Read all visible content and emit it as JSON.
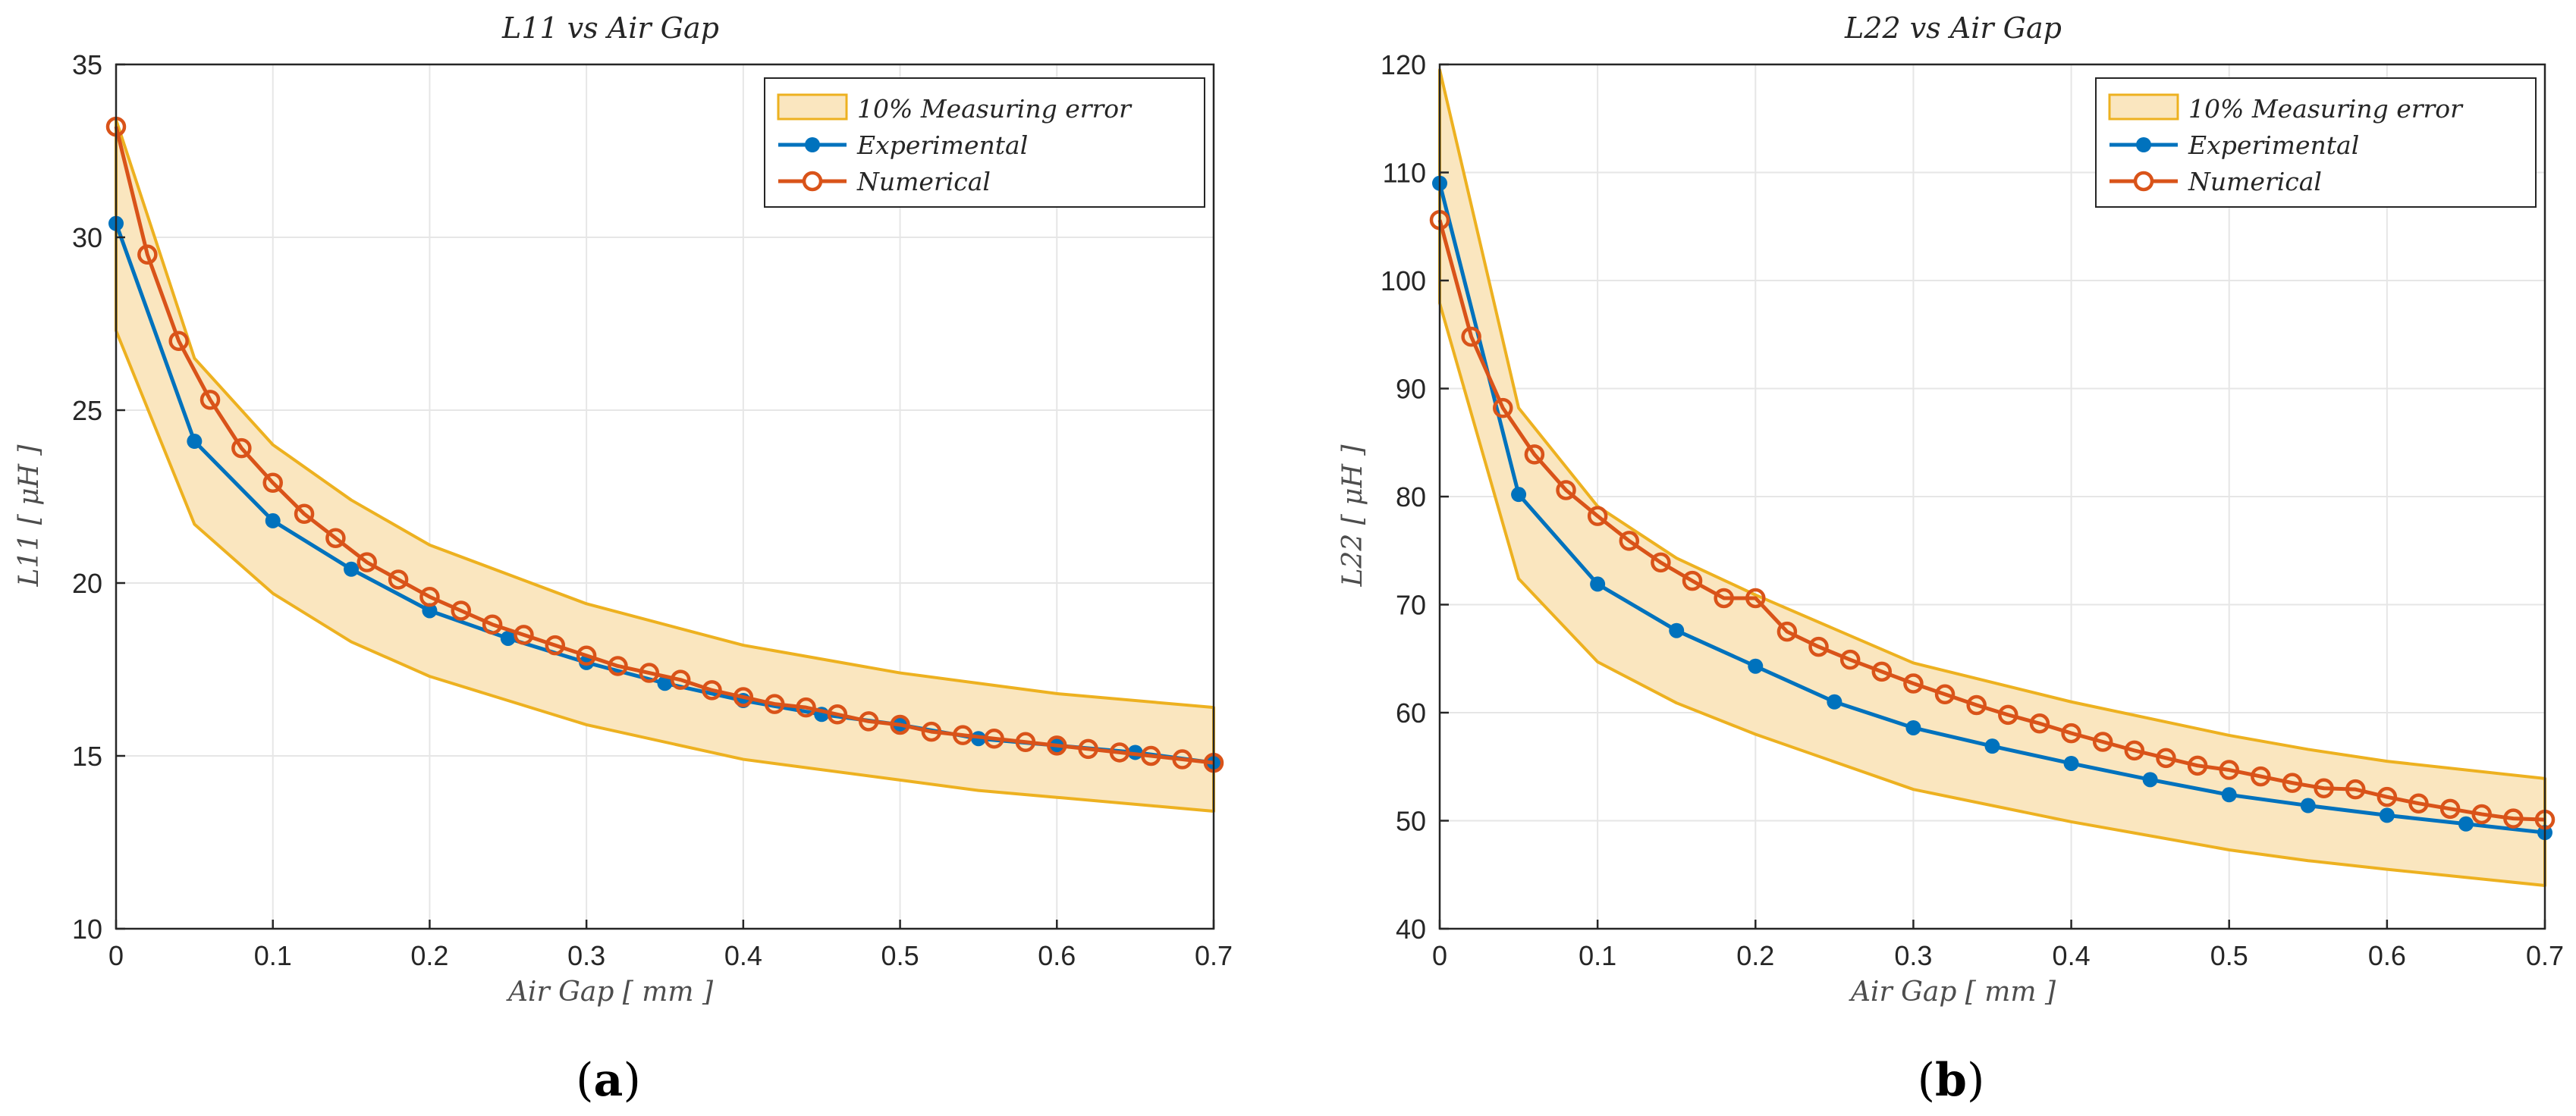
{
  "colors": {
    "band_fill": "#fae6bf",
    "band_edge": "#edb120",
    "experimental": "#0072bd",
    "numerical": "#d95319",
    "grid": "#e6e6e6",
    "axis": "#262626"
  },
  "chart_data": [
    {
      "type": "line",
      "panel": "a",
      "title": "L11 vs Air Gap",
      "xlabel": "Air Gap [ mm ]",
      "ylabel": "L11 [ μH ]",
      "xlim": [
        0,
        0.7
      ],
      "ylim": [
        10,
        35
      ],
      "xticks": [
        0,
        0.1,
        0.2,
        0.3,
        0.4,
        0.5,
        0.6,
        0.7
      ],
      "yticks": [
        10,
        15,
        20,
        25,
        30,
        35
      ],
      "grid": true,
      "legend_position": "top-right",
      "legend": [
        "10% Measuring error",
        "Experimental",
        "Numerical"
      ],
      "band": {
        "name": "10% Measuring error",
        "x": [
          0,
          0.05,
          0.1,
          0.15,
          0.2,
          0.3,
          0.4,
          0.5,
          0.55,
          0.6,
          0.7
        ],
        "upper": [
          33.4,
          26.5,
          24.0,
          22.4,
          21.1,
          19.4,
          18.2,
          17.4,
          17.1,
          16.8,
          16.4
        ],
        "lower": [
          27.3,
          21.7,
          19.7,
          18.3,
          17.3,
          15.9,
          14.9,
          14.3,
          14.0,
          13.8,
          13.4
        ]
      },
      "series": [
        {
          "name": "Experimental",
          "marker": "asterisk",
          "x": [
            0,
            0.05,
            0.1,
            0.15,
            0.2,
            0.25,
            0.3,
            0.35,
            0.4,
            0.45,
            0.5,
            0.55,
            0.6,
            0.65,
            0.7
          ],
          "values": [
            30.4,
            24.1,
            21.8,
            20.4,
            19.2,
            18.4,
            17.7,
            17.1,
            16.6,
            16.2,
            15.9,
            15.5,
            15.3,
            15.1,
            14.8
          ]
        },
        {
          "name": "Numerical",
          "marker": "circle",
          "x": [
            0,
            0.02,
            0.04,
            0.06,
            0.08,
            0.1,
            0.12,
            0.14,
            0.16,
            0.18,
            0.2,
            0.22,
            0.24,
            0.26,
            0.28,
            0.3,
            0.32,
            0.34,
            0.36,
            0.38,
            0.4,
            0.42,
            0.44,
            0.46,
            0.48,
            0.5,
            0.52,
            0.54,
            0.56,
            0.58,
            0.6,
            0.62,
            0.64,
            0.66,
            0.68,
            0.7
          ],
          "values": [
            33.2,
            29.5,
            27.0,
            25.3,
            23.9,
            22.9,
            22.0,
            21.3,
            20.6,
            20.1,
            19.6,
            19.2,
            18.8,
            18.5,
            18.2,
            17.9,
            17.6,
            17.4,
            17.2,
            16.9,
            16.7,
            16.5,
            16.4,
            16.2,
            16.0,
            15.9,
            15.7,
            15.6,
            15.5,
            15.4,
            15.3,
            15.2,
            15.1,
            15.0,
            14.9,
            14.8
          ]
        }
      ]
    },
    {
      "type": "line",
      "panel": "b",
      "title": "L22 vs Air Gap",
      "xlabel": "Air Gap [ mm ]",
      "ylabel": "L22 [ μH ]",
      "xlim": [
        0,
        0.7
      ],
      "ylim": [
        40,
        120
      ],
      "xticks": [
        0,
        0.1,
        0.2,
        0.3,
        0.4,
        0.5,
        0.6,
        0.7
      ],
      "yticks": [
        40,
        50,
        60,
        70,
        80,
        90,
        100,
        110,
        120
      ],
      "grid": true,
      "legend_position": "top-right",
      "legend": [
        "10% Measuring error",
        "Experimental",
        "Numerical"
      ],
      "band": {
        "name": "10% Measuring error",
        "x": [
          0,
          0.05,
          0.1,
          0.15,
          0.2,
          0.3,
          0.4,
          0.5,
          0.55,
          0.6,
          0.7
        ],
        "upper": [
          119.5,
          88.2,
          79.1,
          74.3,
          70.9,
          64.6,
          61.0,
          57.9,
          56.6,
          55.5,
          53.9
        ],
        "lower": [
          97.9,
          72.4,
          64.7,
          60.9,
          58.0,
          52.9,
          49.9,
          47.3,
          46.3,
          45.5,
          44.0
        ]
      },
      "series": [
        {
          "name": "Experimental",
          "marker": "asterisk",
          "x": [
            0,
            0.05,
            0.1,
            0.15,
            0.2,
            0.25,
            0.3,
            0.35,
            0.4,
            0.45,
            0.5,
            0.55,
            0.6,
            0.65,
            0.7
          ],
          "values": [
            109.0,
            80.2,
            71.9,
            67.6,
            64.3,
            61.0,
            58.6,
            56.9,
            55.3,
            53.8,
            52.4,
            51.4,
            50.5,
            49.7,
            48.9
          ]
        },
        {
          "name": "Numerical",
          "marker": "circle",
          "x": [
            0,
            0.02,
            0.04,
            0.06,
            0.08,
            0.1,
            0.12,
            0.14,
            0.16,
            0.18,
            0.2,
            0.22,
            0.24,
            0.26,
            0.28,
            0.3,
            0.32,
            0.34,
            0.36,
            0.38,
            0.4,
            0.42,
            0.44,
            0.46,
            0.48,
            0.5,
            0.52,
            0.54,
            0.56,
            0.58,
            0.6,
            0.62,
            0.64,
            0.66,
            0.68,
            0.7
          ],
          "values": [
            105.6,
            94.8,
            88.2,
            83.9,
            80.6,
            78.2,
            75.9,
            73.9,
            72.2,
            70.6,
            70.6,
            67.5,
            66.1,
            64.9,
            63.8,
            62.7,
            61.7,
            60.7,
            59.8,
            59.0,
            58.1,
            57.3,
            56.5,
            55.8,
            55.1,
            54.7,
            54.1,
            53.5,
            53.0,
            52.9,
            52.2,
            51.6,
            51.1,
            50.6,
            50.2,
            50.1
          ]
        }
      ]
    }
  ],
  "panel_labels": [
    {
      "open": "(",
      "letter": "a",
      "close": ")"
    },
    {
      "open": "(",
      "letter": "b",
      "close": ")"
    }
  ]
}
